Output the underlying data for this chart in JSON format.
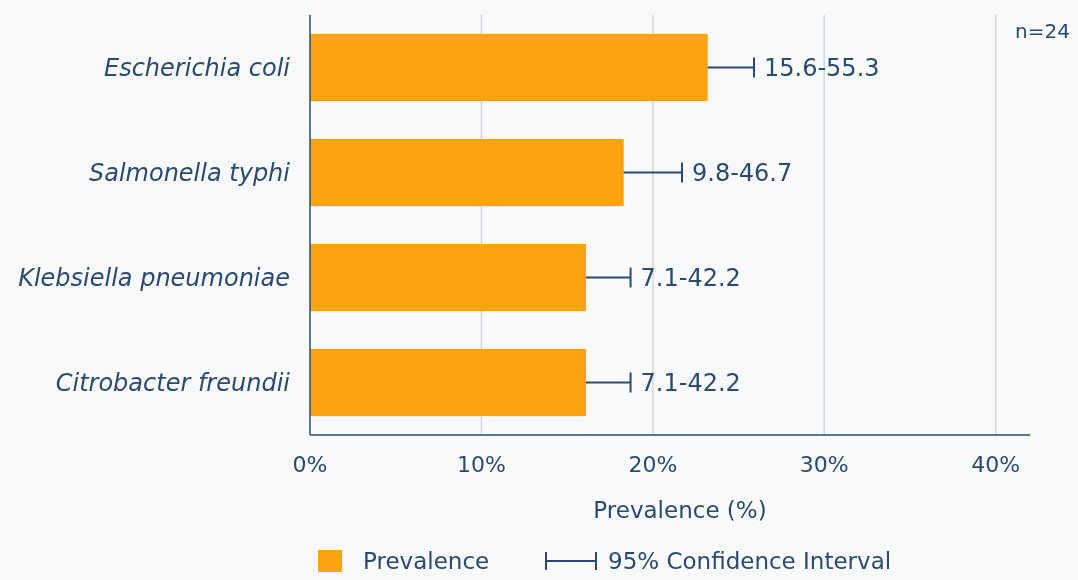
{
  "chart_data": {
    "type": "bar",
    "orientation": "horizontal",
    "xlabel": "Prevalence (%)",
    "categories": [
      "Escherichia coli",
      "Salmonella typhi",
      "Klebsiella pneumoniae",
      "Citrobacter freundii"
    ],
    "series": [
      {
        "name": "Prevalence",
        "color": "#fca311",
        "values": [
          23.2,
          18.3,
          16.1,
          16.1
        ],
        "errors": [
          [
            23.2,
            25.9
          ],
          [
            18.3,
            21.7
          ],
          [
            16.1,
            18.7
          ],
          [
            16.1,
            18.7
          ]
        ],
        "value_labels": [
          "15.6-55.3",
          "9.8-46.7",
          "7.1-42.2",
          "7.1-42.2"
        ]
      }
    ],
    "xlim": [
      0,
      42
    ],
    "xticks": [
      {
        "value": 0,
        "label": "0%"
      },
      {
        "value": 10,
        "label": "10%"
      },
      {
        "value": 20,
        "label": "20%"
      },
      {
        "value": 30,
        "label": "30%"
      },
      {
        "value": 40,
        "label": "40%"
      }
    ],
    "grid": "x",
    "legend": "bottom",
    "annotations": [
      "n=24",
      "95% Confidence Interval"
    ]
  }
}
